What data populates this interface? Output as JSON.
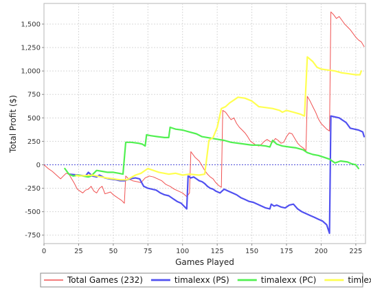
{
  "chart_data": {
    "type": "line",
    "title": "",
    "xlabel": "Games Played",
    "ylabel": "Total Profit ($)",
    "xlim": [
      0,
      232
    ],
    "ylim": [
      -840,
      1720
    ],
    "x_ticks": [
      0,
      25,
      50,
      75,
      100,
      125,
      150,
      175,
      200,
      225
    ],
    "y_ticks": [
      -750,
      -500,
      -250,
      0,
      250,
      500,
      750,
      1000,
      1250,
      1500
    ],
    "y_tick_labels": [
      "-750",
      "-500",
      "-250",
      "0",
      "250",
      "500",
      "750",
      "1,000",
      "1,250",
      "1,500"
    ],
    "grid": true,
    "zero_line": true,
    "legend": "bottom",
    "series": [
      {
        "name": "Total Games (232)",
        "color": "#f05050",
        "width": 1,
        "points": [
          [
            0,
            0
          ],
          [
            3,
            -40
          ],
          [
            6,
            -70
          ],
          [
            9,
            -110
          ],
          [
            12,
            -150
          ],
          [
            14,
            -120
          ],
          [
            16,
            -90
          ],
          [
            18,
            -100
          ],
          [
            20,
            -150
          ],
          [
            22,
            -200
          ],
          [
            24,
            -260
          ],
          [
            26,
            -280
          ],
          [
            28,
            -300
          ],
          [
            30,
            -270
          ],
          [
            32,
            -260
          ],
          [
            34,
            -230
          ],
          [
            36,
            -280
          ],
          [
            38,
            -300
          ],
          [
            40,
            -250
          ],
          [
            42,
            -230
          ],
          [
            44,
            -310
          ],
          [
            46,
            -300
          ],
          [
            48,
            -290
          ],
          [
            50,
            -320
          ],
          [
            52,
            -340
          ],
          [
            54,
            -360
          ],
          [
            56,
            -380
          ],
          [
            58,
            -410
          ],
          [
            59,
            -120
          ],
          [
            61,
            -150
          ],
          [
            64,
            -170
          ],
          [
            67,
            -180
          ],
          [
            70,
            -190
          ],
          [
            73,
            -140
          ],
          [
            76,
            -120
          ],
          [
            79,
            -130
          ],
          [
            82,
            -150
          ],
          [
            85,
            -170
          ],
          [
            88,
            -210
          ],
          [
            91,
            -230
          ],
          [
            94,
            -260
          ],
          [
            97,
            -280
          ],
          [
            100,
            -300
          ],
          [
            103,
            -340
          ],
          [
            105,
            -300
          ],
          [
            106,
            140
          ],
          [
            109,
            80
          ],
          [
            112,
            40
          ],
          [
            114,
            -10
          ],
          [
            116,
            -60
          ],
          [
            118,
            -100
          ],
          [
            120,
            -130
          ],
          [
            122,
            -150
          ],
          [
            124,
            -190
          ],
          [
            126,
            -220
          ],
          [
            128,
            -240
          ],
          [
            129,
            580
          ],
          [
            131,
            560
          ],
          [
            133,
            520
          ],
          [
            135,
            480
          ],
          [
            137,
            500
          ],
          [
            139,
            440
          ],
          [
            141,
            400
          ],
          [
            143,
            370
          ],
          [
            145,
            340
          ],
          [
            147,
            300
          ],
          [
            149,
            250
          ],
          [
            151,
            230
          ],
          [
            153,
            210
          ],
          [
            155,
            200
          ],
          [
            157,
            220
          ],
          [
            159,
            250
          ],
          [
            161,
            270
          ],
          [
            163,
            250
          ],
          [
            165,
            240
          ],
          [
            167,
            280
          ],
          [
            169,
            260
          ],
          [
            171,
            230
          ],
          [
            173,
            240
          ],
          [
            175,
            300
          ],
          [
            177,
            340
          ],
          [
            179,
            330
          ],
          [
            181,
            280
          ],
          [
            183,
            230
          ],
          [
            185,
            200
          ],
          [
            187,
            180
          ],
          [
            189,
            150
          ],
          [
            190,
            730
          ],
          [
            192,
            680
          ],
          [
            194,
            620
          ],
          [
            196,
            560
          ],
          [
            198,
            490
          ],
          [
            200,
            440
          ],
          [
            202,
            410
          ],
          [
            204,
            380
          ],
          [
            206,
            360
          ],
          [
            207,
            1630
          ],
          [
            209,
            1600
          ],
          [
            211,
            1560
          ],
          [
            213,
            1580
          ],
          [
            215,
            1540
          ],
          [
            217,
            1500
          ],
          [
            219,
            1470
          ],
          [
            221,
            1440
          ],
          [
            223,
            1400
          ],
          [
            225,
            1360
          ],
          [
            227,
            1330
          ],
          [
            229,
            1310
          ],
          [
            231,
            1260
          ]
        ]
      },
      {
        "name": "timalexx (PS)",
        "color": "#5050f0",
        "width": 2.2,
        "points": [
          [
            18,
            -100
          ],
          [
            25,
            -110
          ],
          [
            30,
            -120
          ],
          [
            32,
            -80
          ],
          [
            35,
            -120
          ],
          [
            38,
            -130
          ],
          [
            40,
            -110
          ],
          [
            44,
            -140
          ],
          [
            47,
            -150
          ],
          [
            52,
            -160
          ],
          [
            55,
            -170
          ],
          [
            58,
            -170
          ],
          [
            62,
            -150
          ],
          [
            66,
            -140
          ],
          [
            69,
            -150
          ],
          [
            72,
            -230
          ],
          [
            75,
            -250
          ],
          [
            78,
            -260
          ],
          [
            81,
            -270
          ],
          [
            84,
            -300
          ],
          [
            87,
            -320
          ],
          [
            90,
            -330
          ],
          [
            93,
            -360
          ],
          [
            96,
            -390
          ],
          [
            99,
            -410
          ],
          [
            101,
            -440
          ],
          [
            103,
            -470
          ],
          [
            104,
            -120
          ],
          [
            106,
            -140
          ],
          [
            108,
            -130
          ],
          [
            110,
            -150
          ],
          [
            112,
            -170
          ],
          [
            114,
            -180
          ],
          [
            116,
            -200
          ],
          [
            118,
            -230
          ],
          [
            120,
            -250
          ],
          [
            122,
            -260
          ],
          [
            124,
            -280
          ],
          [
            127,
            -300
          ],
          [
            130,
            -260
          ],
          [
            133,
            -280
          ],
          [
            136,
            -300
          ],
          [
            139,
            -320
          ],
          [
            142,
            -350
          ],
          [
            145,
            -370
          ],
          [
            148,
            -390
          ],
          [
            151,
            -400
          ],
          [
            154,
            -420
          ],
          [
            157,
            -440
          ],
          [
            160,
            -460
          ],
          [
            163,
            -470
          ],
          [
            164,
            -420
          ],
          [
            166,
            -440
          ],
          [
            168,
            -430
          ],
          [
            171,
            -450
          ],
          [
            174,
            -460
          ],
          [
            177,
            -430
          ],
          [
            180,
            -420
          ],
          [
            183,
            -470
          ],
          [
            186,
            -500
          ],
          [
            189,
            -520
          ],
          [
            192,
            -540
          ],
          [
            195,
            -560
          ],
          [
            198,
            -580
          ],
          [
            201,
            -600
          ],
          [
            204,
            -640
          ],
          [
            206,
            -730
          ],
          [
            207,
            520
          ],
          [
            210,
            510
          ],
          [
            213,
            500
          ],
          [
            216,
            470
          ],
          [
            218,
            450
          ],
          [
            221,
            390
          ],
          [
            224,
            380
          ],
          [
            227,
            370
          ],
          [
            230,
            350
          ],
          [
            231,
            300
          ]
        ]
      },
      {
        "name": "timalexx (PC)",
        "color": "#50f050",
        "width": 2.2,
        "points": [
          [
            15,
            -40
          ],
          [
            18,
            -100
          ],
          [
            21,
            -120
          ],
          [
            25,
            -110
          ],
          [
            28,
            -120
          ],
          [
            32,
            -130
          ],
          [
            34,
            -120
          ],
          [
            38,
            -60
          ],
          [
            42,
            -70
          ],
          [
            46,
            -80
          ],
          [
            50,
            -80
          ],
          [
            54,
            -90
          ],
          [
            57,
            -100
          ],
          [
            59,
            240
          ],
          [
            63,
            240
          ],
          [
            68,
            230
          ],
          [
            71,
            220
          ],
          [
            73,
            200
          ],
          [
            74,
            320
          ],
          [
            77,
            310
          ],
          [
            82,
            300
          ],
          [
            87,
            290
          ],
          [
            90,
            290
          ],
          [
            91,
            400
          ],
          [
            95,
            380
          ],
          [
            100,
            370
          ],
          [
            105,
            350
          ],
          [
            110,
            330
          ],
          [
            114,
            300
          ],
          [
            118,
            290
          ],
          [
            122,
            280
          ],
          [
            126,
            270
          ],
          [
            130,
            260
          ],
          [
            135,
            240
          ],
          [
            140,
            230
          ],
          [
            145,
            220
          ],
          [
            150,
            210
          ],
          [
            155,
            210
          ],
          [
            160,
            200
          ],
          [
            163,
            190
          ],
          [
            165,
            260
          ],
          [
            168,
            220
          ],
          [
            172,
            200
          ],
          [
            177,
            190
          ],
          [
            182,
            180
          ],
          [
            187,
            160
          ],
          [
            190,
            130
          ],
          [
            194,
            110
          ],
          [
            198,
            100
          ],
          [
            202,
            80
          ],
          [
            206,
            60
          ],
          [
            210,
            20
          ],
          [
            214,
            40
          ],
          [
            219,
            30
          ],
          [
            222,
            10
          ],
          [
            225,
            0
          ],
          [
            227,
            -40
          ]
        ]
      },
      {
        "name": "timlexx (PR)",
        "color": "#ffff50",
        "width": 2.2,
        "points": [
          [
            23,
            -110
          ],
          [
            25,
            -120
          ],
          [
            35,
            -110
          ],
          [
            45,
            -140
          ],
          [
            55,
            -160
          ],
          [
            60,
            -160
          ],
          [
            66,
            -110
          ],
          [
            70,
            -90
          ],
          [
            75,
            -40
          ],
          [
            77,
            -50
          ],
          [
            83,
            -80
          ],
          [
            90,
            -100
          ],
          [
            95,
            -90
          ],
          [
            100,
            -110
          ],
          [
            105,
            -100
          ],
          [
            112,
            -110
          ],
          [
            116,
            -100
          ],
          [
            119,
            260
          ],
          [
            122,
            290
          ],
          [
            125,
            400
          ],
          [
            128,
            600
          ],
          [
            131,
            620
          ],
          [
            134,
            660
          ],
          [
            137,
            690
          ],
          [
            140,
            720
          ],
          [
            145,
            710
          ],
          [
            150,
            680
          ],
          [
            155,
            620
          ],
          [
            160,
            610
          ],
          [
            165,
            600
          ],
          [
            170,
            580
          ],
          [
            172,
            560
          ],
          [
            175,
            580
          ],
          [
            180,
            560
          ],
          [
            185,
            540
          ],
          [
            188,
            520
          ],
          [
            190,
            1150
          ],
          [
            194,
            1100
          ],
          [
            197,
            1040
          ],
          [
            200,
            1020
          ],
          [
            205,
            1010
          ],
          [
            210,
            1000
          ],
          [
            215,
            980
          ],
          [
            220,
            970
          ],
          [
            225,
            960
          ],
          [
            228,
            960
          ],
          [
            229,
            1000
          ]
        ]
      }
    ]
  }
}
